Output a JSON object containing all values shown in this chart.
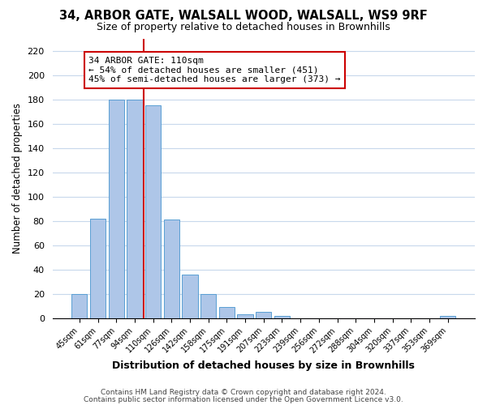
{
  "title1": "34, ARBOR GATE, WALSALL WOOD, WALSALL, WS9 9RF",
  "title2": "Size of property relative to detached houses in Brownhills",
  "xlabel": "Distribution of detached houses by size in Brownhills",
  "ylabel": "Number of detached properties",
  "bar_labels": [
    "45sqm",
    "61sqm",
    "77sqm",
    "94sqm",
    "110sqm",
    "126sqm",
    "142sqm",
    "158sqm",
    "175sqm",
    "191sqm",
    "207sqm",
    "223sqm",
    "239sqm",
    "256sqm",
    "272sqm",
    "288sqm",
    "304sqm",
    "320sqm",
    "337sqm",
    "353sqm",
    "369sqm"
  ],
  "bar_values": [
    20,
    82,
    180,
    180,
    175,
    81,
    36,
    20,
    9,
    3,
    5,
    2,
    0,
    0,
    0,
    0,
    0,
    0,
    0,
    0,
    2
  ],
  "bar_color": "#aec6e8",
  "bar_edge_color": "#5a9fd4",
  "highlight_index": 4,
  "highlight_line_color": "#cc0000",
  "ylim": [
    0,
    230
  ],
  "yticks": [
    0,
    20,
    40,
    60,
    80,
    100,
    120,
    140,
    160,
    180,
    200,
    220
  ],
  "annotation_title": "34 ARBOR GATE: 110sqm",
  "annotation_line1": "← 54% of detached houses are smaller (451)",
  "annotation_line2": "45% of semi-detached houses are larger (373) →",
  "annotation_box_color": "#ffffff",
  "annotation_box_edge": "#cc0000",
  "footer1": "Contains HM Land Registry data © Crown copyright and database right 2024.",
  "footer2": "Contains public sector information licensed under the Open Government Licence v3.0.",
  "background_color": "#ffffff",
  "grid_color": "#c8d8ec"
}
